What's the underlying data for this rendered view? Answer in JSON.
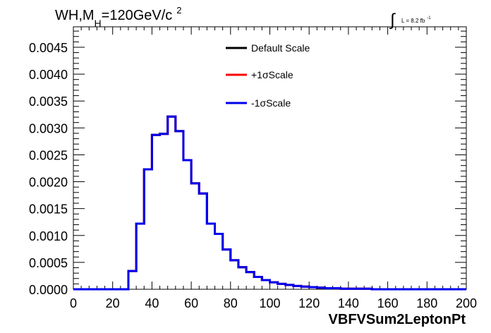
{
  "chart_data": {
    "type": "line",
    "title": {
      "prefix": "WH,M",
      "subscript": "H",
      "main": "=120GeV/c",
      "superscript": "2"
    },
    "lumi": {
      "integral_symbol": "∫",
      "text": "L = 8.2 fb",
      "superscript": "-1"
    },
    "xlabel": "VBFVSum2LeptonPt",
    "ylabel": "",
    "xlim": [
      0,
      200
    ],
    "ylim": [
      0,
      0.00488
    ],
    "x_ticks": [
      "0",
      "20",
      "40",
      "60",
      "80",
      "100",
      "120",
      "140",
      "160",
      "180",
      "200"
    ],
    "y_ticks": [
      "0.0000",
      "0.0005",
      "0.0010",
      "0.0015",
      "0.0020",
      "0.0025",
      "0.0030",
      "0.0035",
      "0.0040",
      "0.0045"
    ],
    "grid": false,
    "legend_position": "top-right",
    "bin_width": 4,
    "bin_edges": [
      0,
      4,
      8,
      12,
      16,
      20,
      24,
      28,
      32,
      36,
      40,
      44,
      48,
      52,
      56,
      60,
      64,
      68,
      72,
      76,
      80,
      84,
      88,
      92,
      96,
      100,
      104,
      108,
      112,
      116,
      120,
      124,
      128,
      132,
      136,
      140,
      144,
      148,
      152,
      156,
      160,
      164,
      168,
      172,
      176,
      180,
      184,
      188,
      192,
      196,
      200
    ],
    "series": [
      {
        "name": "Default Scale",
        "color": "#000000",
        "values": [
          0,
          0,
          0,
          0,
          0,
          0,
          0,
          0.00034,
          0.00122,
          0.00223,
          0.00287,
          0.00289,
          0.00321,
          0.00294,
          0.0024,
          0.00197,
          0.00178,
          0.00122,
          0.00103,
          0.00074,
          0.00054,
          0.00041,
          0.00032,
          0.00023,
          0.00017,
          0.00013,
          0.0001,
          8e-05,
          6e-05,
          5e-05,
          4e-05,
          3e-05,
          2e-05,
          2e-05,
          1e-05,
          1e-05,
          1e-05,
          1e-05,
          0,
          0,
          0,
          0,
          0,
          0,
          0,
          0,
          0,
          0,
          0,
          0
        ]
      },
      {
        "name": "+1σScale",
        "color": "#ff0000",
        "values": [
          0,
          0,
          0,
          0,
          0,
          0,
          0,
          0.00034,
          0.00122,
          0.00223,
          0.00287,
          0.00289,
          0.00321,
          0.00294,
          0.0024,
          0.00197,
          0.00178,
          0.00122,
          0.00103,
          0.00074,
          0.00054,
          0.00041,
          0.00032,
          0.00023,
          0.00017,
          0.00013,
          0.0001,
          8e-05,
          6e-05,
          5e-05,
          4e-05,
          3e-05,
          2e-05,
          2e-05,
          1e-05,
          1e-05,
          1e-05,
          1e-05,
          0,
          0,
          0,
          0,
          0,
          0,
          0,
          0,
          0,
          0,
          0,
          0
        ]
      },
      {
        "name": "-1σScale",
        "color": "#0000ee",
        "values": [
          0,
          0,
          0,
          0,
          0,
          0,
          0,
          0.00034,
          0.00122,
          0.00223,
          0.00287,
          0.00289,
          0.00321,
          0.00294,
          0.0024,
          0.00197,
          0.00178,
          0.00122,
          0.00103,
          0.00074,
          0.00054,
          0.00041,
          0.00032,
          0.00023,
          0.00017,
          0.00013,
          0.0001,
          8e-05,
          6e-05,
          5e-05,
          4e-05,
          3e-05,
          2e-05,
          2e-05,
          1e-05,
          1e-05,
          1e-05,
          1e-05,
          0,
          0,
          0,
          0,
          0,
          0,
          0,
          0,
          0,
          0,
          0,
          0
        ]
      }
    ]
  }
}
